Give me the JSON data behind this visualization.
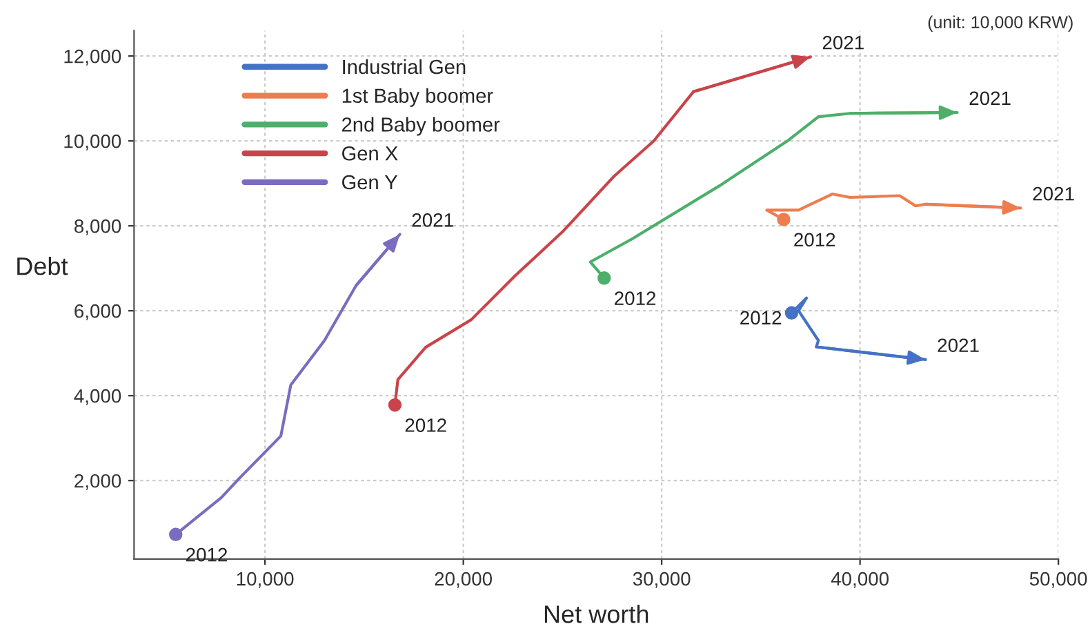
{
  "chart_data": {
    "type": "line",
    "xlabel": "Net worth",
    "ylabel": "Debt",
    "xlim": [
      3400,
      50000
    ],
    "xticks": [
      {
        "value": 10000,
        "label": "10,000"
      },
      {
        "value": 20000,
        "label": "20,000"
      },
      {
        "value": 30000,
        "label": "30,000"
      },
      {
        "value": 40000,
        "label": "40,000"
      },
      {
        "value": 50000,
        "label": "50,000"
      }
    ],
    "ylim": [
      150,
      12600
    ],
    "yticks": [
      {
        "value": 2000,
        "label": "2,000"
      },
      {
        "value": 4000,
        "label": "4,000"
      },
      {
        "value": 6000,
        "label": "6,000"
      },
      {
        "value": 8000,
        "label": "8,000"
      },
      {
        "value": 10000,
        "label": "10,000"
      },
      {
        "value": 12000,
        "label": "12,000"
      }
    ],
    "grid": true,
    "legend": "top left",
    "line_style": "solid",
    "series": [
      {
        "name": "Industrial Gen",
        "color": "#4472c4",
        "x": [
          36550,
          37300,
          36900,
          37900,
          37800,
          43300
        ],
        "values": [
          5950,
          6300,
          6000,
          5300,
          5150,
          4850
        ]
      },
      {
        "name": "1st Baby boomer",
        "color": "#ed7d4f",
        "x": [
          36150,
          35300,
          36900,
          38600,
          39500,
          42000,
          42800,
          43300,
          48100
        ],
        "values": [
          8150,
          8370,
          8370,
          8750,
          8670,
          8710,
          8470,
          8510,
          8420
        ]
      },
      {
        "name": "2nd Baby boomer",
        "color": "#4caf6a",
        "x": [
          27100,
          26400,
          28500,
          32900,
          36400,
          37900,
          39500,
          44900
        ],
        "values": [
          6770,
          7150,
          7690,
          8940,
          10020,
          10570,
          10650,
          10670
        ]
      },
      {
        "name": "Gen X",
        "color": "#c9444a",
        "x": [
          16550,
          16700,
          18100,
          20400,
          22600,
          25000,
          27600,
          29600,
          31600,
          37500
        ],
        "values": [
          3780,
          4380,
          5140,
          5790,
          6820,
          7860,
          9170,
          10000,
          11160,
          11980
        ]
      },
      {
        "name": "Gen Y",
        "color": "#7b6cc0",
        "x": [
          5500,
          7800,
          8700,
          10800,
          11300,
          13000,
          14600,
          16800
        ],
        "values": [
          730,
          1600,
          2050,
          3050,
          4250,
          5300,
          6600,
          7800
        ]
      }
    ],
    "annotations": [
      {
        "text": "2012",
        "x": 36550,
        "y": 5950
      },
      {
        "text": "2021",
        "x": 43300,
        "y": 4850
      },
      {
        "text": "2012",
        "x": 36150,
        "y": 8150
      },
      {
        "text": "2021",
        "x": 48100,
        "y": 8420
      },
      {
        "text": "2012",
        "x": 27100,
        "y": 6770
      },
      {
        "text": "2021",
        "x": 44900,
        "y": 10670
      },
      {
        "text": "2012",
        "x": 16550,
        "y": 3780
      },
      {
        "text": "2021",
        "x": 37500,
        "y": 11980
      },
      {
        "text": "2012",
        "x": 5500,
        "y": 730
      },
      {
        "text": "2021",
        "x": 16800,
        "y": 7800
      },
      "(unit: 10,000 KRW)"
    ]
  }
}
